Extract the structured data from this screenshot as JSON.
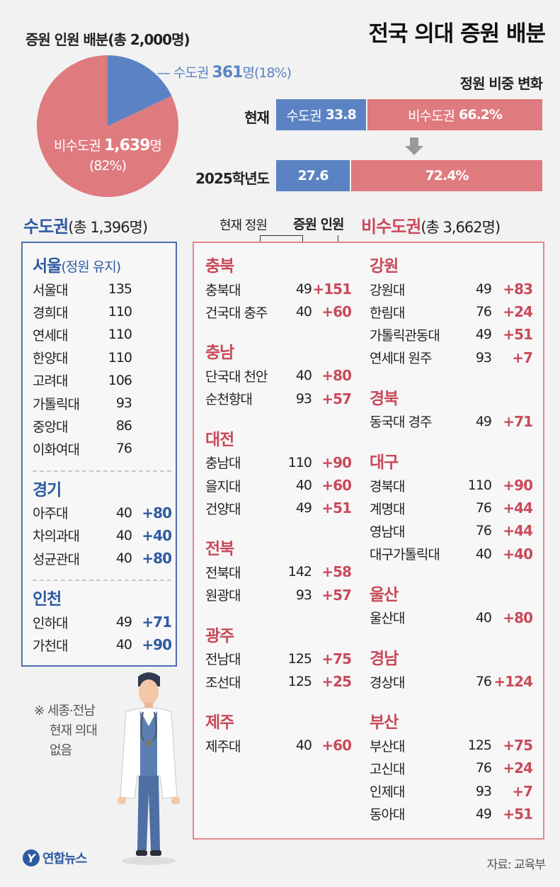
{
  "title": "전국 의대 증원 배분",
  "pie": {
    "title": "증원 인원 배분(총 2,000명)",
    "metro": {
      "prefix": "수도권 ",
      "count": "361",
      "suffix": "명(18%)",
      "fraction": 0.18,
      "color": "#5b83c4"
    },
    "non_metro": {
      "prefix": "비수도권 ",
      "count": "1,639",
      "suffix": "명",
      "pct": "(82%)",
      "fraction": 0.82,
      "color": "#df7a7f"
    }
  },
  "ratio": {
    "title": "정원 비중 변화",
    "rows": [
      {
        "label": "현재",
        "metro_name": "수도권",
        "metro_value": "33.8",
        "non_name": "비수도권",
        "non_value": "66.2%",
        "metro_fraction": 0.338
      },
      {
        "label": "2025학년도",
        "metro_name": "",
        "metro_value": "27.6",
        "non_name": "",
        "non_value": "72.4%",
        "metro_fraction": 0.276
      }
    ]
  },
  "headers": {
    "metro_name": "수도권",
    "metro_total": "(총 1,396명)",
    "non_name": "비수도권",
    "non_total": "(총 3,662명)",
    "col_current": "현재 정원",
    "col_increase": "증원 인원"
  },
  "metro_groups": [
    {
      "name": "서울",
      "sub": "(정원 유지)",
      "rows": [
        {
          "name": "서울대",
          "cur": "135",
          "inc": ""
        },
        {
          "name": "경희대",
          "cur": "110",
          "inc": ""
        },
        {
          "name": "연세대",
          "cur": "110",
          "inc": ""
        },
        {
          "name": "한양대",
          "cur": "110",
          "inc": ""
        },
        {
          "name": "고려대",
          "cur": "106",
          "inc": ""
        },
        {
          "name": "가톨릭대",
          "cur": "93",
          "inc": ""
        },
        {
          "name": "중앙대",
          "cur": "86",
          "inc": ""
        },
        {
          "name": "이화여대",
          "cur": "76",
          "inc": ""
        }
      ]
    },
    {
      "name": "경기",
      "sub": "",
      "rows": [
        {
          "name": "아주대",
          "cur": "40",
          "inc": "+80"
        },
        {
          "name": "차의과대",
          "cur": "40",
          "inc": "+40"
        },
        {
          "name": "성균관대",
          "cur": "40",
          "inc": "+80"
        }
      ]
    },
    {
      "name": "인천",
      "sub": "",
      "rows": [
        {
          "name": "인하대",
          "cur": "49",
          "inc": "+71"
        },
        {
          "name": "가천대",
          "cur": "40",
          "inc": "+90"
        }
      ]
    }
  ],
  "non_left_groups": [
    {
      "name": "충북",
      "rows": [
        {
          "name": "충북대",
          "cur": "49",
          "inc": "+151"
        },
        {
          "name": "건국대 충주",
          "cur": "40",
          "inc": "+60"
        }
      ]
    },
    {
      "name": "충남",
      "rows": [
        {
          "name": "단국대 천안",
          "cur": "40",
          "inc": "+80"
        },
        {
          "name": "순천향대",
          "cur": "93",
          "inc": "+57"
        }
      ]
    },
    {
      "name": "대전",
      "rows": [
        {
          "name": "충남대",
          "cur": "110",
          "inc": "+90"
        },
        {
          "name": "을지대",
          "cur": "40",
          "inc": "+60"
        },
        {
          "name": "건양대",
          "cur": "49",
          "inc": "+51"
        }
      ]
    },
    {
      "name": "전북",
      "rows": [
        {
          "name": "전북대",
          "cur": "142",
          "inc": "+58"
        },
        {
          "name": "원광대",
          "cur": "93",
          "inc": "+57"
        }
      ]
    },
    {
      "name": "광주",
      "rows": [
        {
          "name": "전남대",
          "cur": "125",
          "inc": "+75"
        },
        {
          "name": "조선대",
          "cur": "125",
          "inc": "+25"
        }
      ]
    },
    {
      "name": "제주",
      "rows": [
        {
          "name": "제주대",
          "cur": "40",
          "inc": "+60"
        }
      ]
    }
  ],
  "non_right_groups": [
    {
      "name": "강원",
      "rows": [
        {
          "name": "강원대",
          "cur": "49",
          "inc": "+83"
        },
        {
          "name": "한림대",
          "cur": "76",
          "inc": "+24"
        },
        {
          "name": "가톨릭관동대",
          "cur": "49",
          "inc": "+51"
        },
        {
          "name": "연세대 원주",
          "cur": "93",
          "inc": "+7"
        }
      ]
    },
    {
      "name": "경북",
      "rows": [
        {
          "name": "동국대 경주",
          "cur": "49",
          "inc": "+71"
        }
      ]
    },
    {
      "name": "대구",
      "rows": [
        {
          "name": "경북대",
          "cur": "110",
          "inc": "+90"
        },
        {
          "name": "계명대",
          "cur": "76",
          "inc": "+44"
        },
        {
          "name": "영남대",
          "cur": "76",
          "inc": "+44"
        },
        {
          "name": "대구가톨릭대",
          "cur": "40",
          "inc": "+40"
        }
      ]
    },
    {
      "name": "울산",
      "rows": [
        {
          "name": "울산대",
          "cur": "40",
          "inc": "+80"
        }
      ]
    },
    {
      "name": "경남",
      "rows": [
        {
          "name": "경상대",
          "cur": "76",
          "inc": "+124"
        }
      ]
    },
    {
      "name": "부산",
      "rows": [
        {
          "name": "부산대",
          "cur": "125",
          "inc": "+75"
        },
        {
          "name": "고신대",
          "cur": "76",
          "inc": "+24"
        },
        {
          "name": "인제대",
          "cur": "93",
          "inc": "+7"
        },
        {
          "name": "동아대",
          "cur": "49",
          "inc": "+51"
        }
      ]
    }
  ],
  "note": {
    "line1": "※ 세종·전남",
    "line2": "현재 의대",
    "line3": "없음"
  },
  "logo": {
    "badge": "Y",
    "text": "연합뉴스"
  },
  "source": "자료: 교육부",
  "colors": {
    "metro": "#2e5aa1",
    "non_metro": "#c94a5a",
    "bar_blue": "#5b83c4",
    "bar_red": "#df7a7f"
  }
}
